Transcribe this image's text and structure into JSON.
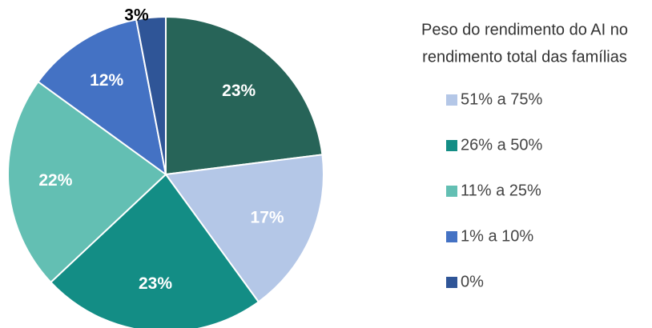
{
  "chart_data": {
    "type": "pie",
    "legend_title": [
      "Peso do rendimento do AI no",
      "rendimento total das famílias"
    ],
    "categories": [
      null,
      "51% a 75%",
      "26% a 50%",
      "11% a 25%",
      "1% a 10%",
      "0%"
    ],
    "values": [
      23,
      17,
      23,
      22,
      12,
      3
    ],
    "value_labels": [
      "23%",
      "17%",
      "23%",
      "22%",
      "12%",
      "3%"
    ],
    "colors": [
      "#276458",
      "#b4c7e7",
      "#138d85",
      "#63bfb3",
      "#4472c4",
      "#2f5597"
    ],
    "legend": "right"
  }
}
